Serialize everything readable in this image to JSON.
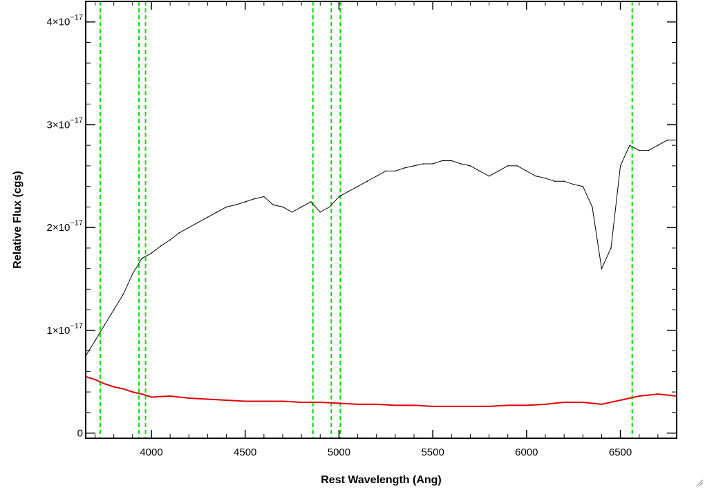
{
  "chart_data": {
    "type": "line",
    "xlabel": "Rest Wavelength (Ang)",
    "ylabel": "Relative Flux (cgs)",
    "xlim": [
      3650,
      6800
    ],
    "ylim": [
      -5e-19,
      4.2e-17
    ],
    "x_ticks": [
      4000,
      4500,
      5000,
      5500,
      6000,
      6500
    ],
    "x_tick_labels": [
      "4000",
      "4500",
      "5000",
      "5500",
      "6000",
      "6500"
    ],
    "y_ticks": [
      0,
      1e-17,
      2e-17,
      3e-17,
      4e-17
    ],
    "y_tick_labels": [
      {
        "mantissa": "0",
        "exp": ""
      },
      {
        "mantissa": "1×10",
        "exp": "−17"
      },
      {
        "mantissa": "2×10",
        "exp": "−17"
      },
      {
        "mantissa": "3×10",
        "exp": "−17"
      },
      {
        "mantissa": "4×10",
        "exp": "−17"
      }
    ],
    "grid": false,
    "colors": {
      "spectrum": "#000000",
      "error": "#e00000",
      "lines": "#00dd00"
    },
    "line_markers": [
      3727,
      3934,
      3969,
      4861,
      4959,
      5007,
      6563
    ],
    "series": [
      {
        "color": "#000000",
        "x": [
          3650,
          3700,
          3750,
          3800,
          3850,
          3900,
          3950,
          4000,
          4050,
          4100,
          4150,
          4200,
          4250,
          4300,
          4350,
          4400,
          4450,
          4500,
          4550,
          4600,
          4650,
          4700,
          4750,
          4800,
          4850,
          4900,
          4950,
          5000,
          5050,
          5100,
          5150,
          5200,
          5250,
          5300,
          5350,
          5400,
          5450,
          5500,
          5550,
          5600,
          5650,
          5700,
          5750,
          5800,
          5850,
          5900,
          5950,
          6000,
          6050,
          6100,
          6150,
          6200,
          6250,
          6300,
          6350,
          6400,
          6450,
          6500,
          6550,
          6600,
          6650,
          6700,
          6750,
          6800
        ],
        "y": [
          7.5e-18,
          9e-18,
          1.05e-17,
          1.2e-17,
          1.35e-17,
          1.55e-17,
          1.7e-17,
          1.75e-17,
          1.82e-17,
          1.88e-17,
          1.95e-17,
          2e-17,
          2.05e-17,
          2.1e-17,
          2.15e-17,
          2.2e-17,
          2.22e-17,
          2.25e-17,
          2.28e-17,
          2.3e-17,
          2.22e-17,
          2.2e-17,
          2.15e-17,
          2.2e-17,
          2.25e-17,
          2.15e-17,
          2.2e-17,
          2.3e-17,
          2.35e-17,
          2.4e-17,
          2.45e-17,
          2.5e-17,
          2.55e-17,
          2.55e-17,
          2.58e-17,
          2.6e-17,
          2.62e-17,
          2.62e-17,
          2.65e-17,
          2.65e-17,
          2.62e-17,
          2.6e-17,
          2.55e-17,
          2.5e-17,
          2.55e-17,
          2.6e-17,
          2.6e-17,
          2.55e-17,
          2.5e-17,
          2.48e-17,
          2.45e-17,
          2.45e-17,
          2.42e-17,
          2.4e-17,
          2.2e-17,
          1.6e-17,
          1.8e-17,
          2.6e-17,
          2.8e-17,
          2.75e-17,
          2.75e-17,
          2.8e-17,
          2.85e-17,
          2.85e-17
        ]
      },
      {
        "color": "#e00000",
        "x": [
          3650,
          3700,
          3750,
          3800,
          3850,
          3900,
          3950,
          4000,
          4100,
          4200,
          4300,
          4400,
          4500,
          4600,
          4700,
          4800,
          4900,
          5000,
          5100,
          5200,
          5300,
          5400,
          5500,
          5600,
          5700,
          5800,
          5900,
          6000,
          6100,
          6200,
          6300,
          6400,
          6500,
          6600,
          6700,
          6800
        ],
        "y": [
          5.5e-18,
          5.2e-18,
          4.8e-18,
          4.5e-18,
          4.3e-18,
          4e-18,
          3.8e-18,
          3.5e-18,
          3.6e-18,
          3.4e-18,
          3.3e-18,
          3.2e-18,
          3.1e-18,
          3.1e-18,
          3.1e-18,
          3e-18,
          3e-18,
          2.9e-18,
          2.8e-18,
          2.8e-18,
          2.7e-18,
          2.7e-18,
          2.6e-18,
          2.6e-18,
          2.6e-18,
          2.6e-18,
          2.7e-18,
          2.7e-18,
          2.8e-18,
          3e-18,
          3e-18,
          2.8e-18,
          3.2e-18,
          3.6e-18,
          3.8e-18,
          3.6e-18
        ]
      }
    ]
  }
}
